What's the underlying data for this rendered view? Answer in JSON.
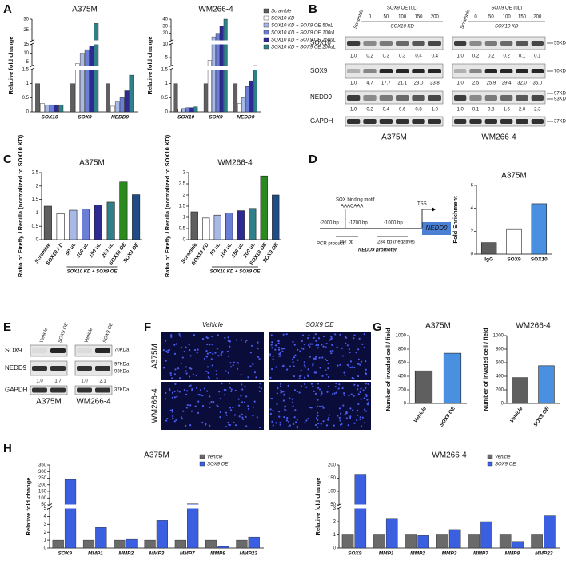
{
  "panel_labels": [
    "A",
    "B",
    "C",
    "D",
    "E",
    "F",
    "G",
    "H"
  ],
  "chart_data": [
    {
      "type": "bar",
      "title": "A375M",
      "ylabel": "Relative fold change",
      "categories": [
        "SOX10",
        "SOX9",
        "NEDD9"
      ],
      "ysegments": [
        {
          "lim": [
            0,
            1.5
          ],
          "ticks": [
            0,
            0.5,
            1,
            1.5
          ]
        },
        {
          "lim": [
            3,
            15
          ],
          "ticks": [
            5,
            10,
            15
          ]
        },
        {
          "lim": [
            20,
            30
          ],
          "ticks": [
            25,
            30
          ]
        }
      ],
      "series": [
        {
          "name": "Scramble",
          "color": "#5f5f5f",
          "values": [
            1.0,
            1.0,
            1.0
          ]
        },
        {
          "name": "SOX10 KD",
          "color": "#ffffff",
          "values": [
            0.3,
            4,
            0.2
          ]
        },
        {
          "name": "SOX10 KD + SOX9 OE 50uL",
          "color": "#a9b9e6",
          "values": [
            0.25,
            10,
            0.35
          ]
        },
        {
          "name": "SOX10 KD + SOX9 OE 100uL",
          "color": "#6c7fd6",
          "values": [
            0.25,
            12,
            0.5
          ]
        },
        {
          "name": "SOX10 KD + SOX9 OE 150uL",
          "color": "#2e2a94",
          "values": [
            0.25,
            14,
            0.75
          ]
        },
        {
          "name": "SOX10 KD + SOX9 OE 200uL",
          "color": "#2f8088",
          "values": [
            0.25,
            28,
            1.3
          ]
        }
      ],
      "legend": false
    },
    {
      "type": "bar",
      "title": "WM266-4",
      "ylabel": "Relative fold change",
      "categories": [
        "SOX10",
        "SOX9",
        "NEDD9"
      ],
      "ysegments": [
        {
          "lim": [
            0,
            1.5
          ],
          "ticks": [
            0,
            0.5,
            1,
            1.5
          ]
        },
        {
          "lim": [
            2,
            10
          ],
          "ticks": [
            5,
            10
          ]
        },
        {
          "lim": [
            10,
            40
          ],
          "ticks": [
            20,
            30,
            40
          ]
        }
      ],
      "series": [
        {
          "name": "Scramble",
          "color": "#5f5f5f",
          "values": [
            1.0,
            1.0,
            1.0
          ]
        },
        {
          "name": "SOX10 KD",
          "color": "#ffffff",
          "values": [
            0.1,
            4,
            0.3
          ]
        },
        {
          "name": "SOX10 KD + SOX9 OE 50uL",
          "color": "#a9b9e6",
          "values": [
            0.12,
            15,
            0.5
          ]
        },
        {
          "name": "SOX10 KD + SOX9 OE 100uL",
          "color": "#6c7fd6",
          "values": [
            0.15,
            20,
            0.9
          ]
        },
        {
          "name": "SOX10 KD + SOX9 OE 150uL",
          "color": "#2e2a94",
          "values": [
            0.15,
            30,
            1.1
          ]
        },
        {
          "name": "SOX10 KD + SOX9 OE 200uL",
          "color": "#2f8088",
          "values": [
            0.18,
            40,
            1.7
          ]
        }
      ],
      "legend": true
    },
    {
      "type": "bar",
      "title": "A375M",
      "ylabel": "Ratio of Firefly / Renilla (normalized to SOX10 KD)",
      "categories": [
        "Scramble",
        "SOX10 KD",
        "50 uL",
        "100 uL",
        "150 uL",
        "200 uL",
        "SOX10 OE",
        "SOX9 OE"
      ],
      "values": [
        1.25,
        0.97,
        1.1,
        1.15,
        1.3,
        1.4,
        2.15,
        1.68
      ],
      "colors": [
        "#5f5f5f",
        "#ffffff",
        "#a9b9e6",
        "#6c7fd6",
        "#2e2a94",
        "#2f8088",
        "#2a8a1e",
        "#1d4c86"
      ],
      "ylim": [
        0,
        2.5
      ],
      "yticks": [
        0,
        0.5,
        1,
        1.5,
        2,
        2.5
      ],
      "group_label": "SOX10 KD + SOX9 OE"
    },
    {
      "type": "bar",
      "title": "WM266-4",
      "ylabel": "Ratio of Firefly / Renilla (normalized to SOX10 KD)",
      "categories": [
        "Scramble",
        "SOX10 KD",
        "50 uL",
        "100 uL",
        "150 uL",
        "200 uL",
        "SOX10 OE",
        "SOX9 OE"
      ],
      "values": [
        1.25,
        0.97,
        1.1,
        1.2,
        1.3,
        1.4,
        2.85,
        2.0
      ],
      "colors": [
        "#5f5f5f",
        "#ffffff",
        "#a9b9e6",
        "#6c7fd6",
        "#2e2a94",
        "#2f8088",
        "#2a8a1e",
        "#1d4c86"
      ],
      "ylim": [
        0,
        3
      ],
      "yticks": [
        0,
        0.5,
        1,
        1.5,
        2,
        2.5,
        3
      ],
      "group_label": "SOX10 KD + SOX9 OE"
    },
    {
      "type": "bar",
      "title": "A375M",
      "ylabel": "Fold Enrichment",
      "categories": [
        "IgG",
        "SOX9",
        "SOX10"
      ],
      "values": [
        1.0,
        2.15,
        4.4
      ],
      "colors": [
        "#5f5f5f",
        "#ffffff",
        "#4a90e0"
      ],
      "ylim": [
        0,
        6
      ],
      "yticks": [
        0,
        2,
        4,
        6
      ]
    },
    {
      "type": "bar",
      "title": "A375M",
      "ylabel": "Number of invaded cell / field",
      "categories": [
        "Vehicle",
        "SOX9 OE"
      ],
      "values": [
        480,
        740
      ],
      "colors": [
        "#5f5f5f",
        "#4a90e0"
      ],
      "ylim": [
        0,
        1000
      ],
      "yticks": [
        0,
        200,
        400,
        600,
        800,
        1000
      ]
    },
    {
      "type": "bar",
      "title": "WM266-4",
      "ylabel": "Number of invaded cell / field",
      "categories": [
        "Vehicle",
        "SOX9 OE"
      ],
      "values": [
        380,
        555
      ],
      "colors": [
        "#5f5f5f",
        "#4a90e0"
      ],
      "ylim": [
        0,
        1000
      ],
      "yticks": [
        0,
        200,
        400,
        600,
        800,
        1000
      ]
    },
    {
      "type": "bar",
      "title": "A375M",
      "ylabel": "Relative fold change",
      "categories": [
        "SOX9",
        "MMP1",
        "MMP2",
        "MMP3",
        "MMP7",
        "MMP8",
        "MMP23"
      ],
      "ysegments": [
        {
          "lim": [
            0,
            5
          ],
          "ticks": [
            0,
            1,
            2,
            3,
            4,
            5
          ]
        },
        {
          "lim": [
            50,
            350
          ],
          "ticks": [
            50,
            100,
            150,
            200,
            250,
            300,
            350
          ]
        }
      ],
      "series": [
        {
          "name": "Vehicle",
          "color": "#6a6a6a",
          "values": [
            1.0,
            1.0,
            1.0,
            1.0,
            1.0,
            1.0,
            1.0
          ]
        },
        {
          "name": "SOX9 OE",
          "color": "#3a5fe0",
          "values": [
            240,
            2.6,
            1.1,
            3.5,
            55,
            0.2,
            1.4
          ]
        }
      ],
      "legend": true
    },
    {
      "type": "bar",
      "title": "WM266-4",
      "ylabel": "Relative fold change",
      "categories": [
        "SOX9",
        "MMP1",
        "MMP2",
        "MMP3",
        "MMP7",
        "MMP8",
        "MMP23"
      ],
      "ysegments": [
        {
          "lim": [
            0,
            3
          ],
          "ticks": [
            0,
            1,
            2,
            3
          ]
        },
        {
          "lim": [
            50,
            200
          ],
          "ticks": [
            50,
            100,
            150,
            200
          ]
        }
      ],
      "series": [
        {
          "name": "Vehicle",
          "color": "#6a6a6a",
          "values": [
            1.0,
            1.0,
            1.0,
            1.0,
            1.0,
            1.0,
            1.0
          ]
        },
        {
          "name": "SOX9 OE",
          "color": "#3a5fe0",
          "values": [
            165,
            2.2,
            0.95,
            1.4,
            2.0,
            0.5,
            2.45
          ]
        }
      ],
      "legend": true
    }
  ],
  "blots_b": [
    {
      "cell": "A375M",
      "scramble": "Scramble",
      "header": "SOX9 OE (uL)",
      "lanes": [
        "0",
        "50",
        "100",
        "150",
        "200"
      ],
      "kd": "SOX10 KD",
      "rows": [
        {
          "name": "SOX10",
          "quant": [
            "1.0",
            "0.2",
            "0.3",
            "0.3",
            "0.4",
            "0.4"
          ]
        },
        {
          "name": "SOX9",
          "quant": [
            "1.0",
            "4.7",
            "17.7",
            "21.1",
            "23.0",
            "23.8"
          ]
        },
        {
          "name": "NEDD9",
          "quant": [
            "1.0",
            "0.2",
            "0.4",
            "0.6",
            "0.8",
            "1.0"
          ]
        },
        {
          "name": "GAPDH"
        }
      ]
    },
    {
      "cell": "WM266-4",
      "scramble": "Scramble",
      "header": "SOX9 OE (uL)",
      "lanes": [
        "0",
        "50",
        "100",
        "150",
        "200"
      ],
      "kd": "SOX10 KD",
      "rows": [
        {
          "quant": [
            "1.0",
            "0.2",
            "0.2",
            "0.2",
            "0.1",
            "0.1"
          ]
        },
        {
          "quant": [
            "1.0",
            "2.5",
            "25.9",
            "29.4",
            "32.0",
            "36.0"
          ]
        },
        {
          "quant": [
            "1.0",
            "0.1",
            "0.8",
            "1.5",
            "2.0",
            "2.3"
          ]
        },
        {}
      ],
      "markers": [
        "55KDa",
        "70KDa",
        "97KDa",
        "93KDa",
        "37KDa"
      ]
    }
  ],
  "diagram_d": {
    "motif": "SOX binding motif",
    "sequence": "AAACAAA",
    "pos1": "-2000 bp",
    "pos2": "-1700 bp",
    "pos3": "-1000 bp",
    "tss": "TSS",
    "gene": "NEDD9",
    "pcr": "PCR product",
    "len1": "167 bp",
    "len2": "284 bp (negative)",
    "promoter": "NEDD9 promoter"
  },
  "blots_e": {
    "lanes": [
      "Vehicle",
      "SOX9 OE"
    ],
    "rows": [
      "SOX9",
      "NEDD9",
      "GAPDH"
    ],
    "cells": [
      {
        "cell": "A375M",
        "quant": [
          "1.0",
          "1.7"
        ]
      },
      {
        "cell": "WM266-4",
        "quant": [
          "1.0",
          "2.1"
        ]
      }
    ],
    "markers": [
      "70KDa",
      "97KDa",
      "93KDa",
      "37KDa"
    ]
  },
  "images_f": {
    "columns": [
      "Vehicle",
      "SOX9 OE"
    ],
    "rows": [
      "A375M",
      "WM266-4"
    ]
  }
}
